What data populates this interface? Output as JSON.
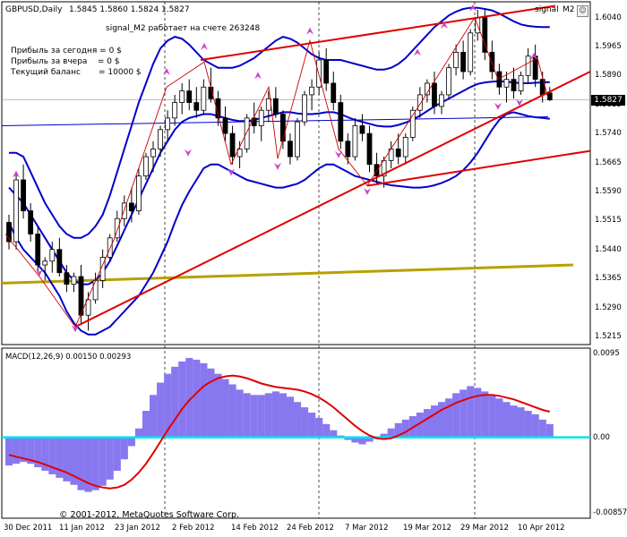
{
  "header": {
    "symbol": "GBPUSD,Daily",
    "ohlc": "1.5845 1.5860 1.5824 1.5827",
    "indicator_name": "signal",
    "ea_status": "signal_M2 работает на счете 263248",
    "window_label": "signal",
    "window_sub": "M2",
    "btn_flag": "☺",
    "btn_close": "✕"
  },
  "info_panel": {
    "today_label": "Прибыль за сегодня = 0 $",
    "yesterday_label": "Прибыль за вчера    = 0 $",
    "balance_label": "Текущий баланс       = 10000 $"
  },
  "price_axis": {
    "ticks": [
      "1.6040",
      "1.5965",
      "1.5890",
      "1.5815",
      "1.5740",
      "1.5665",
      "1.5590",
      "1.5515",
      "1.5440",
      "1.5365",
      "1.5290",
      "1.5215"
    ],
    "current_price": "1.5827"
  },
  "macd": {
    "label": "MACD(12,26,9) 0.00150 0.00293",
    "ticks": [
      "0.0095",
      "0.00",
      "-0.00857"
    ]
  },
  "time_axis": {
    "ticks": [
      "30 Dec 2011",
      "11 Jan 2012",
      "23 Jan 2012",
      "2 Feb 2012",
      "14 Feb 2012",
      "24 Feb 2012",
      "7 Mar 2012",
      "19 Mar 2012",
      "29 Mar 2012",
      "10 Apr 2012"
    ]
  },
  "copyright": "© 2001-2012, MetaQuotes Software Corp.",
  "colors": {
    "bollinger": "#0000cc",
    "trendline": "#e00000",
    "zigzag": "#cc0000",
    "ma_long": "#b8a000",
    "macd_hist": "#8878f0",
    "macd_signal": "#e00000",
    "zero_line": "#00e5ee",
    "arrow": "#cc44cc",
    "candle": "#000000"
  },
  "chart_data": {
    "type": "candlestick",
    "symbol": "GBPUSD",
    "timeframe": "Daily",
    "ylim": [
      1.5205,
      1.608
    ],
    "candles": [
      [
        1.551,
        1.553,
        1.544,
        1.546
      ],
      [
        1.546,
        1.564,
        1.544,
        1.562
      ],
      [
        1.562,
        1.566,
        1.552,
        1.554
      ],
      [
        1.554,
        1.556,
        1.546,
        1.548
      ],
      [
        1.548,
        1.55,
        1.538,
        1.54
      ],
      [
        1.54,
        1.542,
        1.536,
        1.541
      ],
      [
        1.541,
        1.546,
        1.538,
        1.544
      ],
      [
        1.544,
        1.547,
        1.537,
        1.538
      ],
      [
        1.538,
        1.54,
        1.533,
        1.535
      ],
      [
        1.535,
        1.538,
        1.533,
        1.537
      ],
      [
        1.537,
        1.54,
        1.525,
        1.527
      ],
      [
        1.527,
        1.533,
        1.523,
        1.531
      ],
      [
        1.531,
        1.538,
        1.53,
        1.536
      ],
      [
        1.536,
        1.544,
        1.534,
        1.542
      ],
      [
        1.542,
        1.548,
        1.541,
        1.547
      ],
      [
        1.547,
        1.554,
        1.546,
        1.552
      ],
      [
        1.552,
        1.558,
        1.55,
        1.556
      ],
      [
        1.556,
        1.56,
        1.551,
        1.554
      ],
      [
        1.554,
        1.565,
        1.553,
        1.563
      ],
      [
        1.563,
        1.569,
        1.562,
        1.568
      ],
      [
        1.568,
        1.572,
        1.564,
        1.57
      ],
      [
        1.57,
        1.576,
        1.568,
        1.575
      ],
      [
        1.575,
        1.58,
        1.572,
        1.578
      ],
      [
        1.578,
        1.584,
        1.576,
        1.582
      ],
      [
        1.582,
        1.587,
        1.579,
        1.585
      ],
      [
        1.585,
        1.588,
        1.58,
        1.582
      ],
      [
        1.582,
        1.586,
        1.578,
        1.58
      ],
      [
        1.58,
        1.588,
        1.579,
        1.586
      ],
      [
        1.586,
        1.591,
        1.582,
        1.583
      ],
      [
        1.583,
        1.585,
        1.576,
        1.578
      ],
      [
        1.578,
        1.581,
        1.572,
        1.574
      ],
      [
        1.574,
        1.576,
        1.566,
        1.568
      ],
      [
        1.568,
        1.572,
        1.565,
        1.57
      ],
      [
        1.57,
        1.579,
        1.569,
        1.578
      ],
      [
        1.578,
        1.582,
        1.574,
        1.576
      ],
      [
        1.576,
        1.581,
        1.572,
        1.58
      ],
      [
        1.58,
        1.585,
        1.577,
        1.583
      ],
      [
        1.583,
        1.586,
        1.578,
        1.579
      ],
      [
        1.579,
        1.58,
        1.57,
        1.572
      ],
      [
        1.572,
        1.574,
        1.566,
        1.568
      ],
      [
        1.568,
        1.578,
        1.567,
        1.577
      ],
      [
        1.577,
        1.585,
        1.576,
        1.584
      ],
      [
        1.584,
        1.588,
        1.58,
        1.586
      ],
      [
        1.586,
        1.595,
        1.584,
        1.593
      ],
      [
        1.593,
        1.596,
        1.585,
        1.587
      ],
      [
        1.587,
        1.59,
        1.58,
        1.582
      ],
      [
        1.582,
        1.584,
        1.57,
        1.572
      ],
      [
        1.572,
        1.574,
        1.566,
        1.568
      ],
      [
        1.568,
        1.578,
        1.567,
        1.576
      ],
      [
        1.576,
        1.579,
        1.572,
        1.574
      ],
      [
        1.574,
        1.576,
        1.564,
        1.566
      ],
      [
        1.566,
        1.569,
        1.561,
        1.563
      ],
      [
        1.563,
        1.568,
        1.56,
        1.567
      ],
      [
        1.567,
        1.572,
        1.565,
        1.57
      ],
      [
        1.57,
        1.574,
        1.566,
        1.568
      ],
      [
        1.568,
        1.574,
        1.566,
        1.573
      ],
      [
        1.573,
        1.581,
        1.572,
        1.58
      ],
      [
        1.58,
        1.586,
        1.578,
        1.584
      ],
      [
        1.584,
        1.588,
        1.582,
        1.587
      ],
      [
        1.587,
        1.59,
        1.579,
        1.581
      ],
      [
        1.581,
        1.585,
        1.579,
        1.584
      ],
      [
        1.584,
        1.592,
        1.583,
        1.591
      ],
      [
        1.591,
        1.597,
        1.589,
        1.595
      ],
      [
        1.595,
        1.598,
        1.588,
        1.59
      ],
      [
        1.59,
        1.601,
        1.589,
        1.6
      ],
      [
        1.6,
        1.606,
        1.598,
        1.604
      ],
      [
        1.604,
        1.606,
        1.593,
        1.595
      ],
      [
        1.595,
        1.598,
        1.588,
        1.59
      ],
      [
        1.59,
        1.592,
        1.584,
        1.586
      ],
      [
        1.586,
        1.59,
        1.582,
        1.588
      ],
      [
        1.588,
        1.591,
        1.583,
        1.585
      ],
      [
        1.585,
        1.59,
        1.584,
        1.589
      ],
      [
        1.589,
        1.596,
        1.587,
        1.594
      ],
      [
        1.594,
        1.597,
        1.586,
        1.588
      ],
      [
        1.588,
        1.59,
        1.582,
        1.584
      ],
      [
        1.5845,
        1.586,
        1.5824,
        1.5827
      ]
    ],
    "bollinger": {
      "upper": [
        1.569,
        1.569,
        1.568,
        1.564,
        1.56,
        1.556,
        1.553,
        1.55,
        1.548,
        1.547,
        1.547,
        1.548,
        1.55,
        1.553,
        1.558,
        1.564,
        1.57,
        1.576,
        1.582,
        1.587,
        1.592,
        1.596,
        1.598,
        1.599,
        1.5985,
        1.597,
        1.595,
        1.593,
        1.592,
        1.591,
        1.591,
        1.591,
        1.5915,
        1.5925,
        1.5935,
        1.595,
        1.5965,
        1.598,
        1.599,
        1.5985,
        1.5975,
        1.596,
        1.5945,
        1.5935,
        1.593,
        1.593,
        1.593,
        1.5925,
        1.592,
        1.5915,
        1.591,
        1.5905,
        1.5905,
        1.591,
        1.592,
        1.5935,
        1.5955,
        1.5975,
        1.5995,
        1.6015,
        1.603,
        1.6045,
        1.6055,
        1.6062,
        1.6065,
        1.6065,
        1.6062,
        1.6058,
        1.605,
        1.604,
        1.603,
        1.6022,
        1.6018,
        1.6016,
        1.6015,
        1.6015
      ],
      "middle": [
        1.56,
        1.558,
        1.556,
        1.553,
        1.55,
        1.547,
        1.544,
        1.541,
        1.538,
        1.536,
        1.535,
        1.535,
        1.536,
        1.538,
        1.541,
        1.545,
        1.549,
        1.553,
        1.557,
        1.561,
        1.565,
        1.569,
        1.572,
        1.575,
        1.577,
        1.578,
        1.5785,
        1.579,
        1.579,
        1.5785,
        1.578,
        1.5775,
        1.5772,
        1.5772,
        1.5775,
        1.578,
        1.5785,
        1.579,
        1.5795,
        1.5795,
        1.5792,
        1.579,
        1.579,
        1.5792,
        1.5795,
        1.5795,
        1.579,
        1.5782,
        1.5775,
        1.577,
        1.5765,
        1.576,
        1.5758,
        1.5758,
        1.5762,
        1.5768,
        1.5776,
        1.5786,
        1.5798,
        1.581,
        1.582,
        1.583,
        1.584,
        1.585,
        1.586,
        1.5868,
        1.5872,
        1.5874,
        1.5875,
        1.5874,
        1.5872,
        1.587,
        1.587,
        1.5871,
        1.5872,
        1.5873
      ],
      "lower": [
        1.551,
        1.547,
        1.544,
        1.542,
        1.54,
        1.538,
        1.535,
        1.532,
        1.528,
        1.525,
        1.523,
        1.522,
        1.522,
        1.523,
        1.524,
        1.526,
        1.528,
        1.53,
        1.532,
        1.535,
        1.538,
        1.542,
        1.546,
        1.551,
        1.5555,
        1.559,
        1.562,
        1.565,
        1.566,
        1.566,
        1.565,
        1.564,
        1.563,
        1.562,
        1.5615,
        1.561,
        1.5605,
        1.56,
        1.56,
        1.5605,
        1.561,
        1.562,
        1.5635,
        1.565,
        1.566,
        1.566,
        1.565,
        1.564,
        1.563,
        1.5625,
        1.562,
        1.5615,
        1.561,
        1.5606,
        1.5604,
        1.5602,
        1.56,
        1.56,
        1.5602,
        1.5606,
        1.5612,
        1.562,
        1.563,
        1.5645,
        1.5665,
        1.569,
        1.572,
        1.575,
        1.5775,
        1.579,
        1.5795,
        1.579,
        1.5785,
        1.5782,
        1.578,
        1.5778
      ]
    },
    "macd_hist": [
      -0.0032,
      -0.003,
      -0.0028,
      -0.003,
      -0.0034,
      -0.0038,
      -0.0042,
      -0.0046,
      -0.005,
      -0.0054,
      -0.006,
      -0.0062,
      -0.006,
      -0.0055,
      -0.0048,
      -0.0038,
      -0.0025,
      -0.001,
      0.001,
      0.003,
      0.0048,
      0.0062,
      0.0072,
      0.008,
      0.0086,
      0.009,
      0.0088,
      0.0084,
      0.0078,
      0.0072,
      0.0066,
      0.006,
      0.0054,
      0.005,
      0.0048,
      0.0048,
      0.005,
      0.0052,
      0.005,
      0.0046,
      0.004,
      0.0034,
      0.0028,
      0.0022,
      0.0015,
      0.0008,
      0.0002,
      -0.0003,
      -0.0006,
      -0.0008,
      -0.0005,
      -0.0002,
      0.0004,
      0.001,
      0.0016,
      0.002,
      0.0024,
      0.0028,
      0.0032,
      0.0036,
      0.004,
      0.0044,
      0.005,
      0.0054,
      0.0058,
      0.0056,
      0.0052,
      0.0048,
      0.0044,
      0.004,
      0.0036,
      0.0034,
      0.003,
      0.0026,
      0.002,
      0.0015
    ],
    "macd_signal": [
      -0.002,
      -0.0022,
      -0.0024,
      -0.0026,
      -0.0028,
      -0.0031,
      -0.0034,
      -0.0037,
      -0.004,
      -0.0044,
      -0.0048,
      -0.0052,
      -0.0055,
      -0.0057,
      -0.0058,
      -0.0057,
      -0.0054,
      -0.0048,
      -0.004,
      -0.003,
      -0.0018,
      -0.0005,
      0.0008,
      0.002,
      0.0032,
      0.0042,
      0.005,
      0.0058,
      0.0063,
      0.0067,
      0.0069,
      0.007,
      0.0069,
      0.0067,
      0.0064,
      0.0061,
      0.0059,
      0.0057,
      0.0056,
      0.0055,
      0.0054,
      0.0052,
      0.0049,
      0.0045,
      0.004,
      0.0034,
      0.0027,
      0.002,
      0.0013,
      0.0007,
      0.0002,
      -0.0001,
      -0.0002,
      -0.0001,
      0.0002,
      0.0006,
      0.0011,
      0.0016,
      0.0021,
      0.0026,
      0.0031,
      0.0035,
      0.0039,
      0.0042,
      0.0045,
      0.0047,
      0.0048,
      0.0048,
      0.0047,
      0.0045,
      0.0043,
      0.004,
      0.0037,
      0.0034,
      0.0031,
      0.0029
    ],
    "macd_ylim": [
      -0.00857,
      0.0095
    ]
  }
}
